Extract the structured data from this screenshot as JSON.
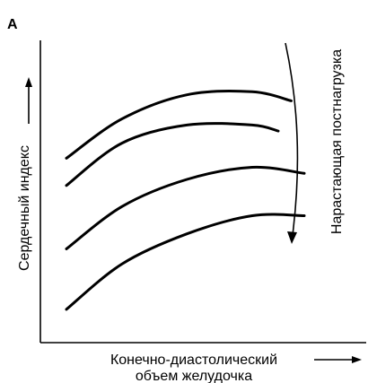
{
  "chart_data": {
    "type": "line",
    "panel_label": "А",
    "xlabel_line1": "Конечно-диастолический",
    "xlabel_line2": "объем желудочка",
    "ylabel": "Сердечный индекс",
    "annotation": "Нарастающая постнагрузка",
    "grid": false,
    "legend": "none",
    "xlim": [
      0,
      10
    ],
    "ylim": [
      0,
      10
    ],
    "series": [
      {
        "x": [
          0.8,
          2.5,
          4.5,
          6.5,
          7.7
        ],
        "values": [
          6.1,
          7.4,
          8.2,
          8.3,
          8.0
        ]
      },
      {
        "x": [
          0.8,
          2.5,
          4.5,
          6.5,
          7.3
        ],
        "values": [
          5.2,
          6.6,
          7.2,
          7.2,
          7.0
        ]
      },
      {
        "x": [
          0.8,
          2.5,
          4.5,
          6.5,
          8.1
        ],
        "values": [
          3.1,
          4.5,
          5.4,
          5.8,
          5.6
        ]
      },
      {
        "x": [
          0.8,
          2.5,
          4.5,
          6.5,
          8.1
        ],
        "values": [
          1.1,
          2.6,
          3.6,
          4.2,
          4.2
        ]
      }
    ]
  }
}
